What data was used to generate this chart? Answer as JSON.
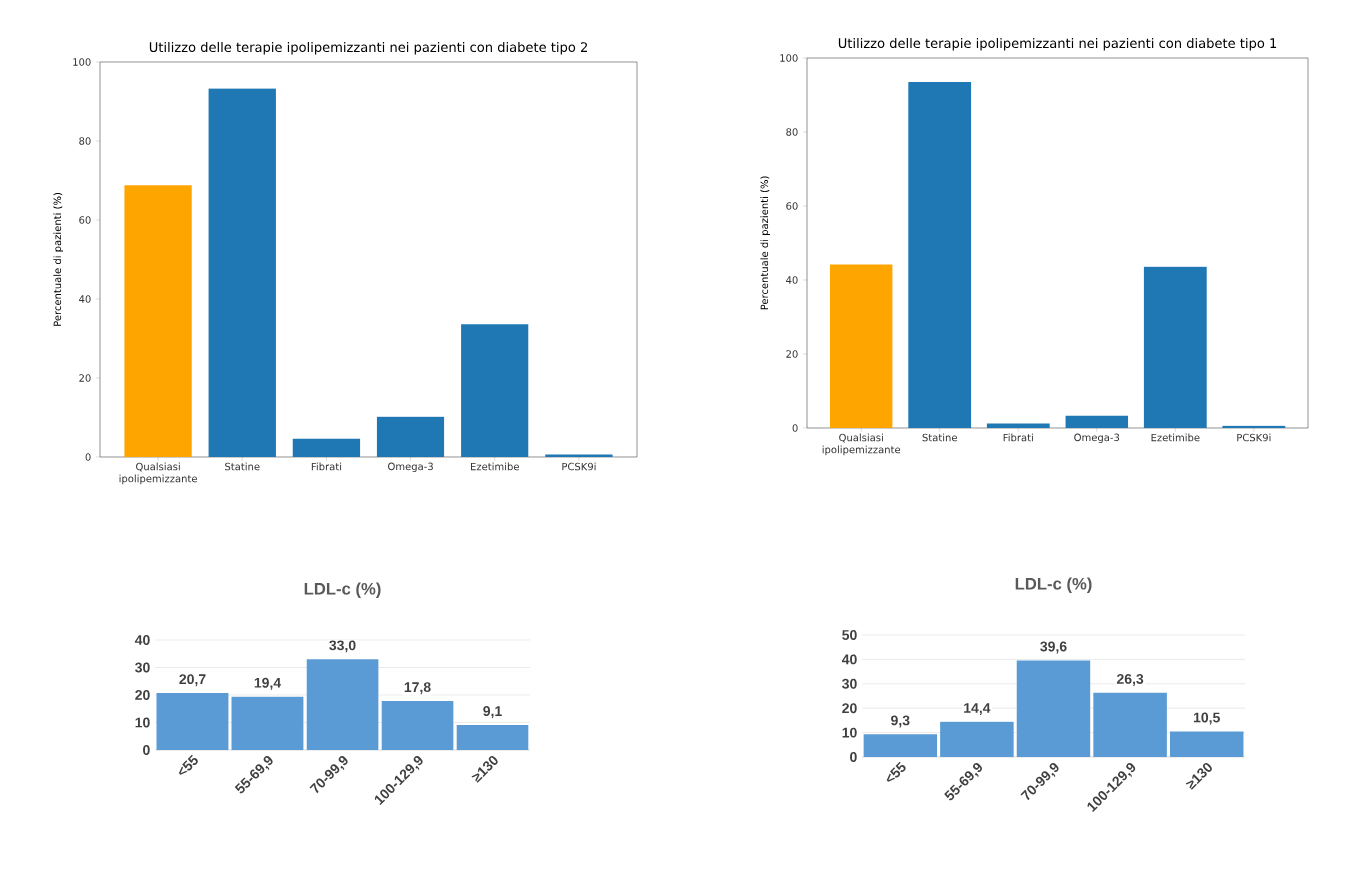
{
  "chart_data": [
    {
      "type": "bar",
      "title": "Utilizzo delle terapie ipolipemizzanti nei pazienti con diabete tipo 2",
      "ylabel": "Percentuale di pazienti (%)",
      "categories": [
        "Qualsiasi ipolipemizzante",
        "Statine",
        "Fibrati",
        "Omega-3",
        "Ezetimibe",
        "PCSK9i"
      ],
      "values": [
        68.8,
        93.3,
        4.6,
        10.2,
        33.6,
        0.6
      ],
      "colors": [
        "#ffa500",
        "#1f77b4",
        "#1f77b4",
        "#1f77b4",
        "#1f77b4",
        "#1f77b4"
      ],
      "ylim": [
        0,
        100
      ],
      "yticks": [
        0,
        20,
        40,
        60,
        80,
        100
      ]
    },
    {
      "type": "bar",
      "title": "Utilizzo delle terapie ipolipemizzanti nei pazienti con diabete tipo 1",
      "ylabel": "Percentuale di pazienti (%)",
      "categories": [
        "Qualsiasi ipolipemizzante",
        "Statine",
        "Fibrati",
        "Omega-3",
        "Ezetimibe",
        "PCSK9i"
      ],
      "values": [
        44.2,
        93.5,
        1.2,
        3.3,
        43.6,
        0.6
      ],
      "colors": [
        "#ffa500",
        "#1f77b4",
        "#1f77b4",
        "#1f77b4",
        "#1f77b4",
        "#1f77b4"
      ],
      "ylim": [
        0,
        100
      ],
      "yticks": [
        0,
        20,
        40,
        60,
        80,
        100
      ]
    },
    {
      "type": "bar",
      "title": "LDL-c (%)",
      "categories": [
        "<55",
        "55-69,9",
        "70-99,9",
        "100-129,9",
        "≥130"
      ],
      "values": [
        20.7,
        19.4,
        33.0,
        17.8,
        9.1
      ],
      "value_labels": [
        "20,7",
        "19,4",
        "33,0",
        "17,8",
        "9,1"
      ],
      "colors": [
        "#5b9bd5",
        "#5b9bd5",
        "#5b9bd5",
        "#5b9bd5",
        "#5b9bd5"
      ],
      "ylim": [
        0,
        40
      ],
      "yticks": [
        0,
        10,
        20,
        30,
        40
      ],
      "grid": "y"
    },
    {
      "type": "bar",
      "title": "LDL-c (%)",
      "categories": [
        "<55",
        "55-69,9",
        "70-99,9",
        "100-129,9",
        "≥130"
      ],
      "values": [
        9.3,
        14.4,
        39.6,
        26.3,
        10.5
      ],
      "value_labels": [
        "9,3",
        "14,4",
        "39,6",
        "26,3",
        "10,5"
      ],
      "colors": [
        "#5b9bd5",
        "#5b9bd5",
        "#5b9bd5",
        "#5b9bd5",
        "#5b9bd5"
      ],
      "ylim": [
        0,
        50
      ],
      "yticks": [
        0,
        10,
        20,
        30,
        40,
        50
      ],
      "grid": "y"
    }
  ]
}
